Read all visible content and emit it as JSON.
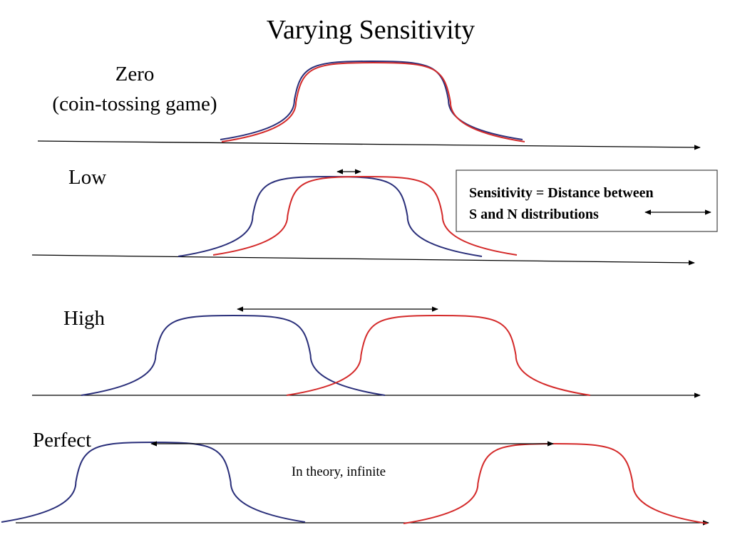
{
  "slide": {
    "title": "Varying Sensitivity",
    "rows": [
      {
        "label_lines": [
          "Zero",
          "(coin-tossing game)"
        ]
      },
      {
        "label_lines": [
          "Low"
        ]
      },
      {
        "label_lines": [
          "High"
        ]
      },
      {
        "label_lines": [
          "Perfect"
        ]
      }
    ],
    "perfect_note": "In theory, infinite",
    "definition_box": {
      "line1": "Sensitivity = Distance between",
      "line2": "S and N distributions"
    }
  },
  "colors": {
    "noise_curve": "#2a2f7a",
    "signal_curve": "#d42a2a"
  }
}
